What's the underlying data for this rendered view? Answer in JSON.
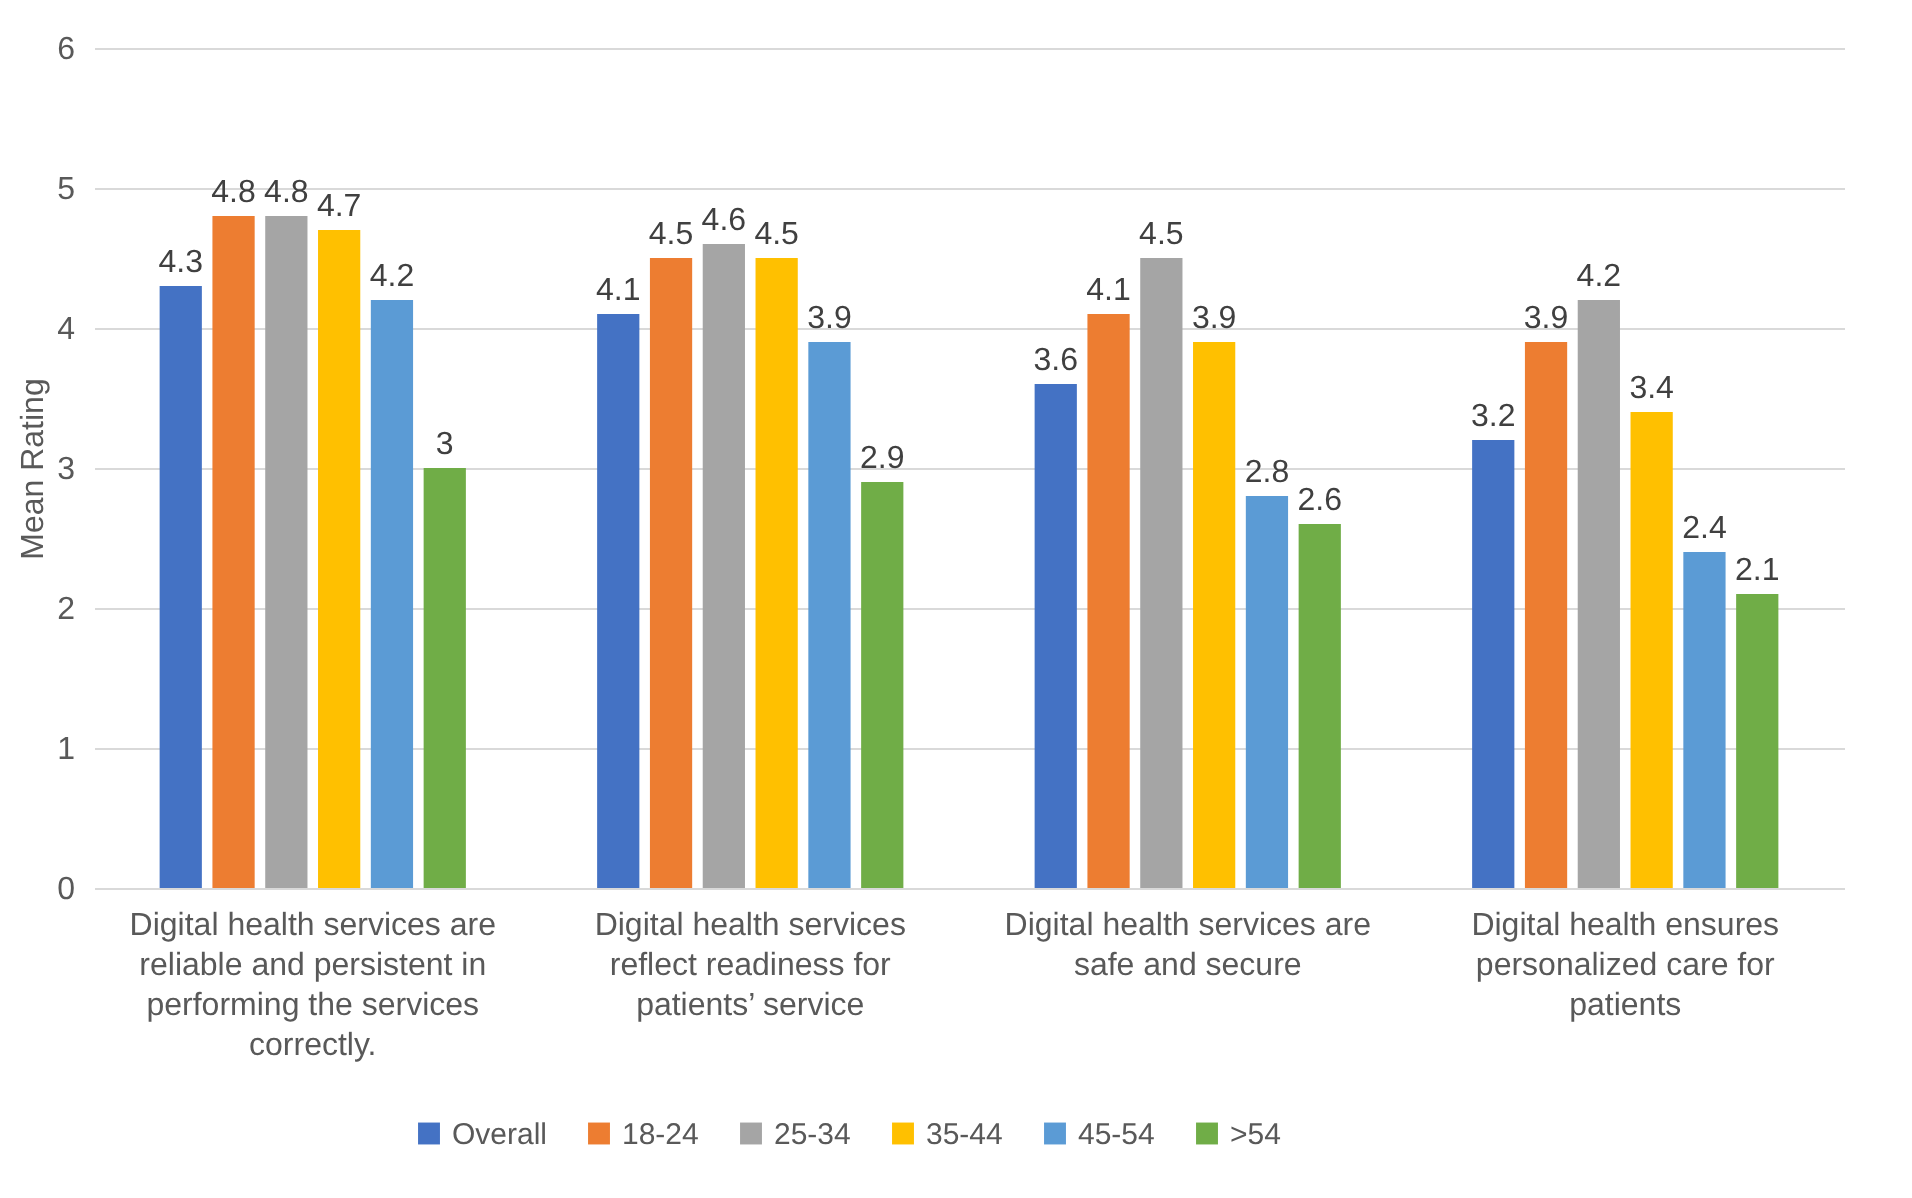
{
  "chart_data": {
    "type": "bar",
    "ylabel": "Mean Rating",
    "categories": [
      "Digital health services are reliable and persistent in performing the services correctly.",
      "Digital health services reflect readiness for patients’ service",
      "Digital health services are safe and secure",
      "Digital health ensures personalized care for patients"
    ],
    "series": [
      {
        "name": "Overall",
        "color": "#4472c4",
        "values": [
          4.3,
          4.1,
          3.6,
          3.2
        ]
      },
      {
        "name": "18-24",
        "color": "#ed7d31",
        "values": [
          4.8,
          4.5,
          4.1,
          3.9
        ]
      },
      {
        "name": "25-34",
        "color": "#a5a5a5",
        "values": [
          4.8,
          4.6,
          4.5,
          4.2
        ]
      },
      {
        "name": "35-44",
        "color": "#ffc000",
        "values": [
          4.7,
          4.5,
          3.9,
          3.4
        ]
      },
      {
        "name": "45-54",
        "color": "#5b9bd5",
        "values": [
          4.2,
          3.9,
          2.8,
          2.4
        ]
      },
      {
        "name": ">54",
        "color": "#70ad47",
        "values": [
          3,
          2.9,
          2.6,
          2.1
        ]
      }
    ],
    "ylim": [
      0,
      6
    ],
    "yticks": [
      0,
      1,
      2,
      3,
      4,
      5,
      6
    ],
    "grid": "y",
    "legend": "bottom",
    "data_labels": true
  }
}
